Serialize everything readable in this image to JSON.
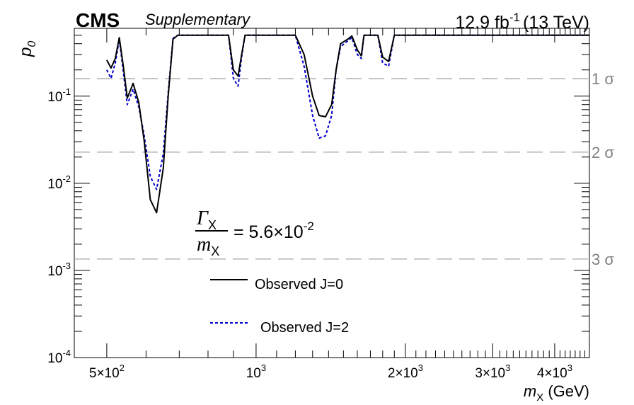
{
  "header": {
    "experiment": "CMS",
    "tag": "Supplementary",
    "lumi_value": "12.9 fb",
    "lumi_exp": "-1",
    "energy": "(13 TeV)"
  },
  "annotation": {
    "numerator": "Γ",
    "numerator_sub": "X",
    "denominator": "m",
    "denominator_sub": "X",
    "equals": "= 5.6×10",
    "exponent": "-2"
  },
  "chart_data": {
    "type": "line",
    "xscale": "log",
    "yscale": "log",
    "xlim": [
      430,
      4700
    ],
    "ylim": [
      0.0001,
      0.6
    ],
    "xlabel": "m",
    "xlabel_sub": "X",
    "xlabel_unit": " (GeV)",
    "ylabel": "p",
    "ylabel_sub": "0",
    "x_ticks": [
      {
        "value": 500,
        "mant": "5×10",
        "exp": "2"
      },
      {
        "value": 1000,
        "mant": "10",
        "exp": "3"
      },
      {
        "value": 2000,
        "mant": "2×10",
        "exp": "3"
      },
      {
        "value": 3000,
        "mant": "3×10",
        "exp": "3"
      },
      {
        "value": 4000,
        "mant": "4×10",
        "exp": "3"
      }
    ],
    "y_ticks": [
      {
        "value": 0.1,
        "mant": "10",
        "exp": "-1"
      },
      {
        "value": 0.01,
        "mant": "10",
        "exp": "-2"
      },
      {
        "value": 0.001,
        "mant": "10",
        "exp": "-3"
      },
      {
        "value": 0.0001,
        "mant": "10",
        "exp": "-4"
      }
    ],
    "significance_lines": [
      {
        "value": 0.1587,
        "label": "1 σ"
      },
      {
        "value": 0.02275,
        "label": "2 σ"
      },
      {
        "value": 0.00135,
        "label": "3 σ"
      }
    ],
    "legend_position": "bottom-left",
    "series": [
      {
        "name": "Observed J=0",
        "color": "#000000",
        "style": "solid",
        "x": [
          500,
          510,
          520,
          530,
          540,
          550,
          565,
          580,
          595,
          612,
          630,
          650,
          665,
          680,
          695,
          710,
          730,
          800,
          880,
          900,
          920,
          935,
          950,
          1000,
          1100,
          1200,
          1250,
          1300,
          1340,
          1380,
          1420,
          1450,
          1480,
          1530,
          1560,
          1600,
          1630,
          1650,
          1700,
          1760,
          1800,
          1850,
          1900,
          2200,
          3000,
          4700
        ],
        "y": [
          0.26,
          0.21,
          0.27,
          0.47,
          0.22,
          0.095,
          0.14,
          0.085,
          0.03,
          0.0065,
          0.0046,
          0.015,
          0.1,
          0.45,
          0.5,
          0.5,
          0.5,
          0.5,
          0.5,
          0.2,
          0.17,
          0.3,
          0.5,
          0.5,
          0.5,
          0.5,
          0.3,
          0.1,
          0.06,
          0.058,
          0.08,
          0.2,
          0.4,
          0.45,
          0.49,
          0.34,
          0.29,
          0.5,
          0.5,
          0.5,
          0.28,
          0.25,
          0.5,
          0.5,
          0.5,
          0.5
        ]
      },
      {
        "name": "Observed J=2",
        "color": "#0000cc",
        "style": "dashed",
        "x": [
          500,
          510,
          520,
          530,
          540,
          550,
          565,
          580,
          595,
          612,
          630,
          650,
          665,
          680,
          695,
          710,
          730,
          800,
          880,
          900,
          920,
          935,
          950,
          1000,
          1100,
          1200,
          1250,
          1300,
          1340,
          1380,
          1420,
          1450,
          1480,
          1530,
          1560,
          1600,
          1630,
          1650,
          1700,
          1760,
          1800,
          1850,
          1900,
          2200,
          3000,
          4700
        ],
        "y": [
          0.2,
          0.16,
          0.24,
          0.45,
          0.19,
          0.08,
          0.12,
          0.075,
          0.035,
          0.012,
          0.0085,
          0.022,
          0.11,
          0.46,
          0.5,
          0.5,
          0.5,
          0.5,
          0.5,
          0.16,
          0.13,
          0.28,
          0.5,
          0.5,
          0.5,
          0.5,
          0.22,
          0.06,
          0.033,
          0.035,
          0.06,
          0.2,
          0.37,
          0.43,
          0.47,
          0.3,
          0.27,
          0.5,
          0.5,
          0.5,
          0.24,
          0.22,
          0.5,
          0.5,
          0.5,
          0.5
        ]
      }
    ]
  }
}
